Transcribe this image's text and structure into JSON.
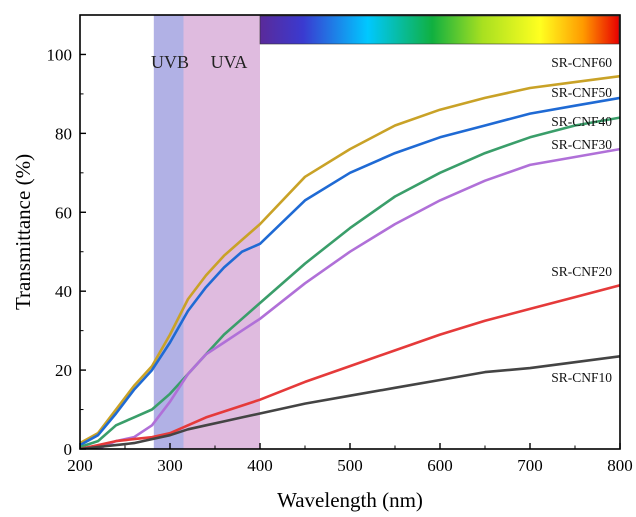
{
  "chart_data": {
    "type": "line",
    "title": "",
    "xlabel": "Wavelength (nm)",
    "ylabel": "Transmittance (%)",
    "xlim": [
      200,
      800
    ],
    "ylim": [
      0,
      110
    ],
    "x_ticks": [
      "200",
      "300",
      "400",
      "500",
      "600",
      "700",
      "800"
    ],
    "y_ticks": [
      "0",
      "20",
      "40",
      "60",
      "80",
      "100"
    ],
    "grid": false,
    "legend": "inline labels at right end of each curve",
    "bands": [
      {
        "name": "UVB",
        "range": [
          282,
          315
        ],
        "color": "#a9a8e2"
      },
      {
        "name": "UVA",
        "range": [
          315,
          400
        ],
        "color": "#dcb4dc"
      }
    ],
    "visible_spectrum_bar": {
      "range": [
        400,
        800
      ]
    },
    "series": [
      {
        "name": "SR-CNF60",
        "color": "#c9a227",
        "x": [
          200,
          220,
          240,
          260,
          280,
          300,
          320,
          340,
          360,
          380,
          400,
          450,
          500,
          550,
          600,
          650,
          700,
          750,
          800
        ],
        "values": [
          1.5,
          4,
          10,
          16,
          21,
          29,
          38,
          44,
          49,
          53,
          57,
          69,
          76,
          82,
          86,
          89,
          91.5,
          93,
          94.5
        ]
      },
      {
        "name": "SR-CNF50",
        "color": "#1f6ad4",
        "x": [
          200,
          220,
          240,
          260,
          280,
          300,
          320,
          340,
          360,
          380,
          400,
          450,
          500,
          550,
          600,
          650,
          700,
          750,
          800
        ],
        "values": [
          1,
          3.5,
          9,
          15,
          20,
          27,
          35,
          41,
          46,
          50,
          52,
          63,
          70,
          75,
          79,
          82,
          85,
          87,
          89
        ]
      },
      {
        "name": "SR-CNF40",
        "color": "#3a9e6a",
        "x": [
          200,
          220,
          240,
          260,
          280,
          300,
          320,
          340,
          360,
          380,
          400,
          450,
          500,
          550,
          600,
          650,
          700,
          750,
          800
        ],
        "values": [
          0.5,
          2,
          6,
          8,
          10,
          14,
          19,
          24,
          29,
          33,
          37,
          47,
          56,
          64,
          70,
          75,
          79,
          82,
          84
        ]
      },
      {
        "name": "SR-CNF30",
        "color": "#b070d8",
        "x": [
          200,
          220,
          240,
          260,
          280,
          300,
          320,
          340,
          360,
          380,
          400,
          450,
          500,
          550,
          600,
          650,
          700,
          750,
          800
        ],
        "values": [
          0,
          0,
          2,
          3,
          6,
          12,
          19,
          24,
          27,
          30,
          33,
          42,
          50,
          57,
          63,
          68,
          72,
          74,
          76
        ]
      },
      {
        "name": "SR-CNF20",
        "color": "#e53a3a",
        "x": [
          200,
          220,
          240,
          260,
          280,
          300,
          320,
          340,
          360,
          380,
          400,
          450,
          500,
          550,
          600,
          650,
          700,
          750,
          800
        ],
        "values": [
          0,
          1,
          2,
          2.5,
          3,
          4,
          6,
          8,
          9.5,
          11,
          12.5,
          17,
          21,
          25,
          29,
          32.5,
          35.5,
          38.5,
          41.5
        ]
      },
      {
        "name": "SR-CNF10",
        "color": "#444444",
        "x": [
          200,
          220,
          240,
          260,
          280,
          300,
          320,
          340,
          360,
          380,
          400,
          450,
          500,
          550,
          600,
          650,
          700,
          750,
          800
        ],
        "values": [
          0,
          0.5,
          1,
          1.5,
          2.5,
          3.5,
          5,
          6,
          7,
          8,
          9,
          11.5,
          13.5,
          15.5,
          17.5,
          19.5,
          20.5,
          22,
          23.5
        ]
      }
    ]
  }
}
